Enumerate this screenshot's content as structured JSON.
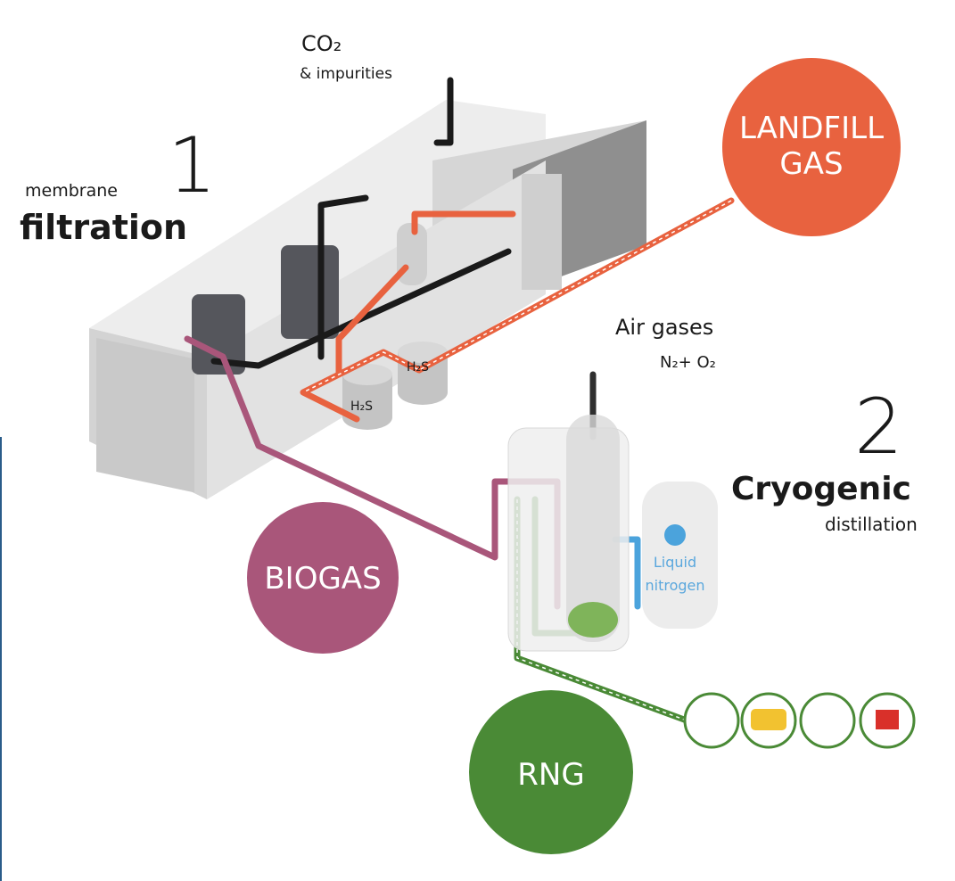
{
  "steps": [
    {
      "number": "1",
      "subtitle": "membrane",
      "title": "filtration"
    },
    {
      "number": "2",
      "title": "Cryogenic",
      "subtitle": "distillation"
    }
  ],
  "outputs": {
    "co2": {
      "formula": "CO₂",
      "label": "& impurities"
    },
    "air": {
      "label": "Air gases",
      "formula": "N₂+ O₂"
    }
  },
  "tanks": [
    "H₂S",
    "H₂S"
  ],
  "gases": [
    {
      "lines": [
        "LANDFILL",
        "GAS"
      ]
    },
    {
      "lines": [
        "BIOGAS"
      ]
    },
    {
      "lines": [
        "RNG"
      ]
    }
  ],
  "nitrogen": [
    "Liquid",
    "nitrogen"
  ]
}
